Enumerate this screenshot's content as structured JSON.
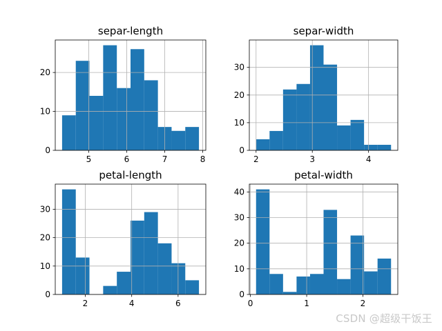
{
  "watermark": "CSDN @超级干饭王",
  "chart_data": [
    {
      "type": "histogram",
      "title": "separ-length",
      "bins": [
        4.3,
        4.66,
        5.02,
        5.38,
        5.74,
        6.1,
        6.46,
        6.82,
        7.18,
        7.54,
        7.9
      ],
      "counts": [
        9,
        23,
        14,
        27,
        16,
        26,
        18,
        6,
        5,
        6
      ],
      "xlim": [
        4.12,
        8.08
      ],
      "ylim": [
        0,
        28.35
      ],
      "xticks": [
        5,
        6,
        7,
        8
      ],
      "yticks": [
        0,
        10,
        20
      ],
      "grid": true,
      "color": "#1f77b4"
    },
    {
      "type": "histogram",
      "title": "separ-width",
      "bins": [
        2.0,
        2.24,
        2.48,
        2.72,
        2.96,
        3.2,
        3.44,
        3.68,
        3.92,
        4.16,
        4.4
      ],
      "counts": [
        4,
        7,
        22,
        24,
        38,
        31,
        9,
        11,
        2,
        2
      ],
      "xlim": [
        1.88,
        4.52
      ],
      "ylim": [
        0,
        39.9
      ],
      "xticks": [
        2,
        3,
        4
      ],
      "yticks": [
        0,
        10,
        20,
        30
      ],
      "grid": true,
      "color": "#1f77b4"
    },
    {
      "type": "histogram",
      "title": "petal-length",
      "bins": [
        1.0,
        1.59,
        2.18,
        2.77,
        3.36,
        3.95,
        4.54,
        5.13,
        5.72,
        6.31,
        6.9
      ],
      "counts": [
        37,
        13,
        0,
        3,
        8,
        26,
        29,
        18,
        11,
        5
      ],
      "xlim": [
        0.705,
        7.195
      ],
      "ylim": [
        0,
        38.85
      ],
      "xticks": [
        2,
        4,
        6
      ],
      "yticks": [
        0,
        10,
        20,
        30
      ],
      "grid": true,
      "color": "#1f77b4"
    },
    {
      "type": "histogram",
      "title": "petal-width",
      "bins": [
        0.1,
        0.34,
        0.58,
        0.82,
        1.06,
        1.3,
        1.54,
        1.78,
        2.02,
        2.26,
        2.5
      ],
      "counts": [
        41,
        8,
        1,
        7,
        8,
        33,
        6,
        23,
        9,
        14
      ],
      "xlim": [
        -0.02,
        2.62
      ],
      "ylim": [
        0,
        43.05
      ],
      "xticks": [
        0,
        1,
        2
      ],
      "yticks": [
        0,
        10,
        20,
        30,
        40
      ],
      "grid": true,
      "color": "#1f77b4"
    }
  ]
}
